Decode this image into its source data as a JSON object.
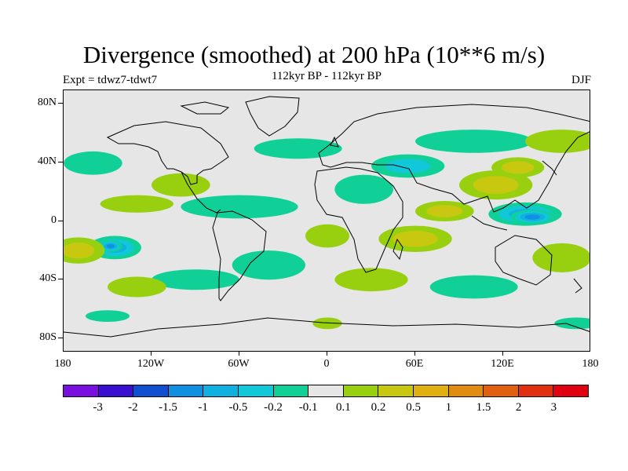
{
  "title": "Divergence (smoothed) at 200 hPa (10**6 m/s)",
  "subtitle": "112kyr BP - 112kyr BP",
  "experiment": "Expt = tdwz7-tdwt7",
  "season": "DJF",
  "chart_data": {
    "type": "heatmap",
    "lat_axis": {
      "range": [
        -90,
        90
      ],
      "tick_labels": [
        "80N",
        "40N",
        "0",
        "40S",
        "80S"
      ],
      "tick_values": [
        80,
        40,
        0,
        -40,
        -80
      ]
    },
    "lon_axis": {
      "range": [
        -180,
        180
      ],
      "tick_labels": [
        "180",
        "120W",
        "60W",
        "0",
        "60E",
        "120E",
        "180"
      ],
      "tick_values": [
        -180,
        -120,
        -60,
        0,
        60,
        120,
        180
      ]
    },
    "colorbar": {
      "labels": [
        "-3",
        "-2",
        "-1.5",
        "-1",
        "-0.5",
        "-0.2",
        "-0.1",
        "0.1",
        "0.2",
        "0.5",
        "1",
        "1.5",
        "2",
        "3"
      ],
      "colors": [
        "#7a10e0",
        "#3a10d0",
        "#1050d0",
        "#1090e0",
        "#10b0e0",
        "#10c8d8",
        "#10d098",
        "#e6e6e6",
        "#98d010",
        "#c8c810",
        "#e0b010",
        "#e08c10",
        "#e06010",
        "#e03010",
        "#e00010"
      ]
    },
    "features": [
      {
        "lon": 135,
        "lat": 5,
        "rlon": 25,
        "rlat": 8,
        "level": -3
      },
      {
        "lon": 140,
        "lat": 3,
        "rlon": 15,
        "rlat": 5,
        "level": -4
      },
      {
        "lon": -145,
        "lat": -18,
        "rlon": 18,
        "rlat": 8,
        "level": -3
      },
      {
        "lon": -148,
        "lat": -17,
        "rlon": 8,
        "rlat": 4,
        "level": -4
      },
      {
        "lon": 115,
        "lat": 25,
        "rlon": 25,
        "rlat": 10,
        "level": 2
      },
      {
        "lon": 130,
        "lat": 37,
        "rlon": 18,
        "rlat": 7,
        "level": 2
      },
      {
        "lon": 60,
        "lat": -12,
        "rlon": 25,
        "rlat": 9,
        "level": 2
      },
      {
        "lon": 80,
        "lat": 7,
        "rlon": 20,
        "rlat": 7,
        "level": 2
      },
      {
        "lon": -170,
        "lat": -20,
        "rlon": 18,
        "rlat": 9,
        "level": 2
      },
      {
        "lon": -130,
        "lat": 12,
        "rlon": 25,
        "rlat": 6,
        "level": 1
      },
      {
        "lon": 55,
        "lat": 38,
        "rlon": 25,
        "rlat": 8,
        "level": -2
      },
      {
        "lon": 25,
        "lat": 22,
        "rlon": 20,
        "rlat": 10,
        "level": -1
      },
      {
        "lon": -60,
        "lat": 10,
        "rlon": 40,
        "rlat": 8,
        "level": -1
      },
      {
        "lon": -100,
        "lat": 25,
        "rlon": 20,
        "rlat": 8,
        "level": 1
      },
      {
        "lon": 160,
        "lat": -25,
        "rlon": 20,
        "rlat": 10,
        "level": 1
      },
      {
        "lon": -40,
        "lat": -30,
        "rlon": 25,
        "rlat": 10,
        "level": -1
      },
      {
        "lon": 30,
        "lat": -40,
        "rlon": 25,
        "rlat": 8,
        "level": 1
      },
      {
        "lon": -20,
        "lat": 50,
        "rlon": 30,
        "rlat": 7,
        "level": -1
      },
      {
        "lon": 100,
        "lat": 55,
        "rlon": 40,
        "rlat": 8,
        "level": -1
      },
      {
        "lon": 160,
        "lat": 55,
        "rlon": 25,
        "rlat": 8,
        "level": 1
      },
      {
        "lon": -160,
        "lat": 40,
        "rlon": 20,
        "rlat": 8,
        "level": -1
      },
      {
        "lon": 0,
        "lat": -10,
        "rlon": 15,
        "rlat": 8,
        "level": 1
      },
      {
        "lon": -90,
        "lat": -40,
        "rlon": 30,
        "rlat": 7,
        "level": -1
      },
      {
        "lon": 100,
        "lat": -45,
        "rlon": 30,
        "rlat": 8,
        "level": -1
      },
      {
        "lon": 0,
        "lat": -70,
        "rlon": 10,
        "rlat": 4,
        "level": 1
      },
      {
        "lon": -150,
        "lat": -65,
        "rlon": 15,
        "rlat": 4,
        "level": -1
      },
      {
        "lon": 170,
        "lat": -70,
        "rlon": 15,
        "rlat": 4,
        "level": -1
      },
      {
        "lon": -130,
        "lat": -45,
        "rlon": 20,
        "rlat": 7,
        "level": 1
      }
    ]
  }
}
